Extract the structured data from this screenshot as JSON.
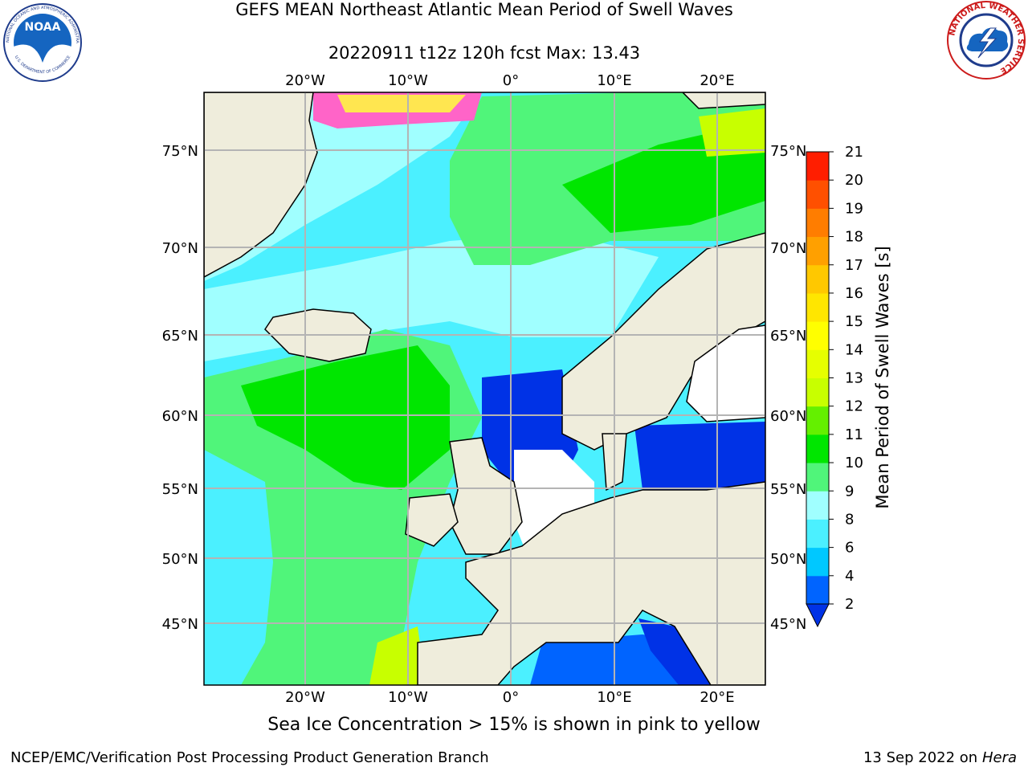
{
  "title_line1": "GEFS MEAN Northeast Atlantic Mean Period of Swell Waves",
  "title_line2": "20220911 t12z 120h fcst   Max: 13.43",
  "lon_ticks": [
    "20°W",
    "10°W",
    "0°",
    "10°E",
    "20°E"
  ],
  "lat_ticks": [
    "75°N",
    "70°N",
    "65°N",
    "60°N",
    "55°N",
    "50°N",
    "45°N"
  ],
  "colorbar": {
    "title": "Mean Period of Swell Waves [s]",
    "levels": [
      "2",
      "4",
      "6",
      "8",
      "9",
      "10",
      "11",
      "12",
      "13",
      "14",
      "15",
      "16",
      "17",
      "18",
      "19",
      "20",
      "21"
    ],
    "colors": [
      "#0064ff",
      "#00c8ff",
      "#4bf0ff",
      "#a0ffff",
      "#50f57a",
      "#00e600",
      "#64f000",
      "#c8ff00",
      "#e6ff00",
      "#ffff00",
      "#ffe600",
      "#ffc800",
      "#ffa000",
      "#ff7d00",
      "#ff5000",
      "#ff1e00",
      "#ff0000"
    ],
    "under_color": "#0032e6"
  },
  "footer_note": "Sea Ice Concentration > 15% is shown in pink to yellow",
  "credit": "NCEP/EMC/Verification Post Processing Product Generation Branch",
  "date_text": "13 Sep 2022 on",
  "host": "Hera",
  "logo_left": "NOAA",
  "logo_left_ring": "NATIONAL OCEANIC AND ATMOSPHERIC ADMINISTRATION",
  "logo_left_ring2": "U.S. DEPARTMENT OF COMMERCE",
  "logo_right_ring": "NATIONAL WEATHER SERVICE",
  "colors": {
    "land": "#efeddc",
    "grid": "#b4b4b4"
  }
}
